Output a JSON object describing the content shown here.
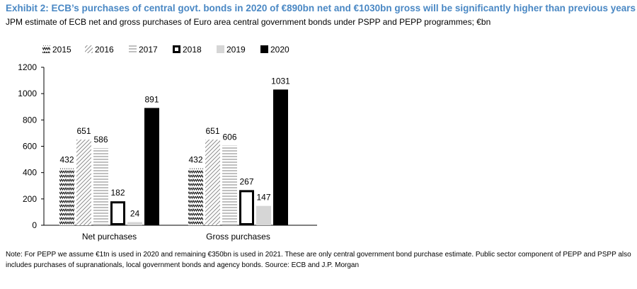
{
  "header": {
    "title": "Exhibit 2: ECB’s purchases of central govt. bonds in 2020 of €890bn net and €1030bn gross will be significantly higher than previous years",
    "subtitle": "JPM estimate of ECB net and gross purchases of Euro area central government bonds under PSPP and PEPP programmes; €bn"
  },
  "footer": {
    "note": "Note: For PEPP we assume €1tn is used in 2020 and remaining €350bn is used in 2021. These are only central government bond purchase estimate. Public sector component of PEPP and PSPP also includes purchases of supranationals, local government bonds and agency bonds. Source: ECB and J.P. Morgan"
  },
  "chart_data": {
    "type": "bar",
    "title": "",
    "xlabel": "",
    "ylabel": "",
    "ylim": [
      0,
      1200
    ],
    "yticks": [
      "0",
      "200",
      "400",
      "600",
      "800",
      "1000",
      "1200"
    ],
    "categories": [
      "Net purchases",
      "Gross purchases"
    ],
    "legend_position": "top-left",
    "series": [
      {
        "name": "2015",
        "values": [
          432,
          432
        ],
        "labels": [
          "432",
          "432"
        ],
        "pattern": "zigzag"
      },
      {
        "name": "2016",
        "values": [
          651,
          651
        ],
        "labels": [
          "651",
          "651"
        ],
        "pattern": "diagonal"
      },
      {
        "name": "2017",
        "values": [
          586,
          606
        ],
        "labels": [
          "586",
          "606"
        ],
        "pattern": "horizontal"
      },
      {
        "name": "2018",
        "values": [
          182,
          267
        ],
        "labels": [
          "182",
          "267"
        ],
        "pattern": "outline"
      },
      {
        "name": "2019",
        "values": [
          24,
          147
        ],
        "labels": [
          "24",
          "147"
        ],
        "pattern": "light-gray"
      },
      {
        "name": "2020",
        "values": [
          891,
          1031
        ],
        "labels": [
          "891",
          "1031"
        ],
        "pattern": "black"
      }
    ]
  }
}
